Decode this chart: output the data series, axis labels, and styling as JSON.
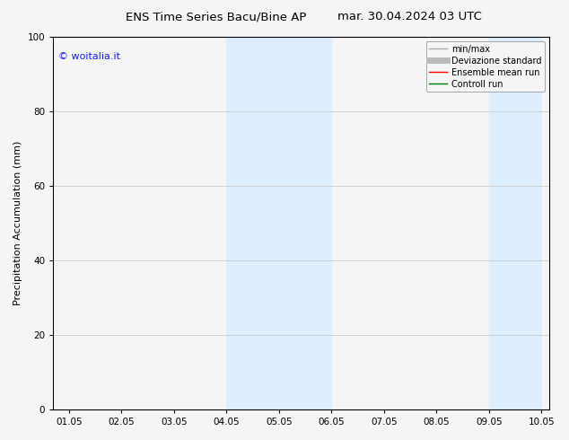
{
  "title_left": "ENS Time Series Bacu/Bine AP",
  "title_right": "mar. 30.04.2024 03 UTC",
  "ylabel": "Precipitation Accumulation (mm)",
  "ylim": [
    0,
    100
  ],
  "yticks": [
    0,
    20,
    40,
    60,
    80,
    100
  ],
  "x_start": 1.05,
  "x_end": 10.05,
  "xtick_labels": [
    "01.05",
    "02.05",
    "03.05",
    "04.05",
    "05.05",
    "06.05",
    "07.05",
    "08.05",
    "09.05",
    "10.05"
  ],
  "xtick_positions": [
    1.05,
    2.05,
    3.05,
    4.05,
    5.05,
    6.05,
    7.05,
    8.05,
    9.05,
    10.05
  ],
  "shaded_bands": [
    {
      "x_start": 4.05,
      "x_end": 6.05
    },
    {
      "x_start": 9.05,
      "x_end": 10.05
    }
  ],
  "shaded_color": "#ddeeff",
  "watermark_text": "© woitalia.it",
  "watermark_color": "#1a1aff",
  "legend_entries": [
    {
      "label": "min/max",
      "color": "#aaaaaa",
      "lw": 1.0
    },
    {
      "label": "Deviazione standard",
      "color": "#bbbbbb",
      "lw": 5
    },
    {
      "label": "Ensemble mean run",
      "color": "red",
      "lw": 1.0
    },
    {
      "label": "Controll run",
      "color": "green",
      "lw": 1.0
    }
  ],
  "bg_color": "#f5f5f5",
  "plot_bg_color": "#f5f5f5",
  "grid_color": "#cccccc",
  "title_fontsize": 9.5,
  "axis_label_fontsize": 8,
  "tick_fontsize": 7.5,
  "legend_fontsize": 7,
  "watermark_fontsize": 8
}
